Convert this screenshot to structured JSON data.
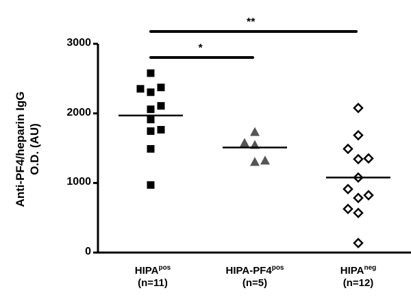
{
  "chart_data": {
    "type": "scatter",
    "subtype": "dot-plot-with-median",
    "title": "",
    "ylabel": [
      "Anti-PF4/heparin IgG",
      "O.D. (AU)"
    ],
    "xlabel": "",
    "ylim": [
      0,
      3000
    ],
    "yticks": [
      0,
      1000,
      2000,
      3000
    ],
    "grid": false,
    "legend": null,
    "categories": [
      {
        "name": "HIPA",
        "sup": "pos",
        "n_label": "(n=11)"
      },
      {
        "name": "HIPA-PF4",
        "sup": "pos",
        "n_label": "(n=5)"
      },
      {
        "name": "HIPA",
        "sup": "neg",
        "n_label": "(n=12)"
      }
    ],
    "series": [
      {
        "name": "HIPApos",
        "marker": "square",
        "color": "#000000",
        "values": [
          2578,
          2373,
          2353,
          2304,
          2108,
          2059,
          1912,
          1765,
          1745,
          1490,
          971
        ],
        "x_offsets": [
          0,
          1,
          -1,
          0,
          1,
          0,
          0,
          1,
          0,
          0,
          0
        ],
        "center_line": 1970
      },
      {
        "name": "HIPA-PF4pos",
        "marker": "triangle",
        "color": "#555555",
        "values": [
          1735,
          1578,
          1549,
          1324,
          1304
        ],
        "x_offsets": [
          0,
          -1,
          0,
          1,
          0
        ],
        "center_line": 1510
      },
      {
        "name": "HIPAneg",
        "marker": "open-diamond",
        "color": "#000000",
        "values": [
          2078,
          1686,
          1490,
          1353,
          1343,
          1078,
          912,
          824,
          784,
          627,
          569,
          137
        ],
        "x_offsets": [
          0,
          0,
          -1,
          1,
          0,
          0,
          -1,
          1,
          0,
          -1,
          0,
          0
        ],
        "center_line": 1078
      }
    ],
    "annotations": [
      {
        "type": "significance-bar",
        "from": 0,
        "to": 1,
        "label": "*"
      },
      {
        "type": "significance-bar",
        "from": 0,
        "to": 2,
        "label": "**"
      }
    ]
  }
}
